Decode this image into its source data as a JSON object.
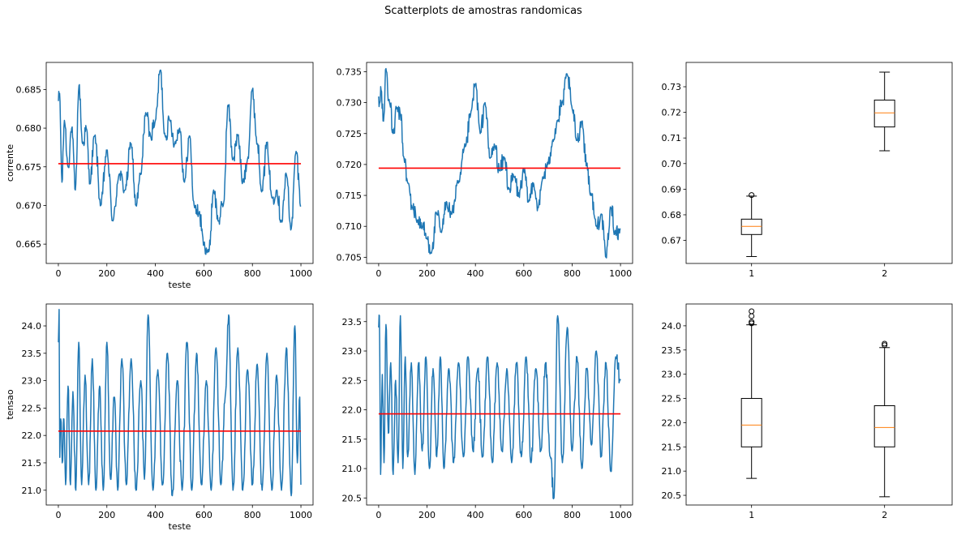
{
  "suptitle": "Scatterplots de amostras randomicas",
  "colors": {
    "series": "#1f77b4",
    "mean": "#ff0000",
    "median": "#ff7f0e",
    "box": "#000000",
    "background": "#ffffff"
  },
  "chart_data": [
    {
      "id": "corrente-1",
      "type": "line",
      "xlabel": "teste",
      "ylabel": "corrente",
      "xlim": [
        -50,
        1050
      ],
      "ylim": [
        0.6625,
        0.6885
      ],
      "xticks": [
        0,
        200,
        400,
        600,
        800,
        1000
      ],
      "yticks": [
        0.665,
        0.67,
        0.675,
        0.68,
        0.685
      ],
      "ytick_labels": [
        "0.665",
        "0.670",
        "0.675",
        "0.680",
        "0.685"
      ],
      "series_anchors": {
        "x": [
          0,
          5,
          15,
          25,
          40,
          55,
          70,
          85,
          100,
          115,
          130,
          150,
          175,
          200,
          225,
          250,
          275,
          300,
          320,
          340,
          360,
          380,
          400,
          420,
          440,
          460,
          480,
          500,
          520,
          540,
          560,
          580,
          600,
          620,
          640,
          660,
          680,
          700,
          720,
          740,
          760,
          780,
          800,
          820,
          840,
          860,
          880,
          900,
          920,
          940,
          960,
          980,
          1000
        ],
        "y": [
          0.6835,
          0.6845,
          0.673,
          0.681,
          0.675,
          0.68,
          0.672,
          0.6855,
          0.678,
          0.68,
          0.673,
          0.679,
          0.67,
          0.677,
          0.668,
          0.674,
          0.672,
          0.678,
          0.67,
          0.674,
          0.682,
          0.679,
          0.681,
          0.6875,
          0.679,
          0.681,
          0.678,
          0.68,
          0.673,
          0.679,
          0.67,
          0.669,
          0.665,
          0.664,
          0.672,
          0.668,
          0.67,
          0.683,
          0.676,
          0.679,
          0.673,
          0.676,
          0.685,
          0.678,
          0.672,
          0.678,
          0.671,
          0.672,
          0.668,
          0.674,
          0.667,
          0.677,
          0.67
        ]
      },
      "mean": 0.6754
    },
    {
      "id": "corrente-2",
      "type": "line",
      "xlabel": "",
      "ylabel": "",
      "xlim": [
        -50,
        1050
      ],
      "ylim": [
        0.704,
        0.7365
      ],
      "xticks": [
        0,
        200,
        400,
        600,
        800,
        1000
      ],
      "yticks": [
        0.705,
        0.71,
        0.715,
        0.72,
        0.725,
        0.73,
        0.735
      ],
      "ytick_labels": [
        "0.705",
        "0.710",
        "0.715",
        "0.720",
        "0.725",
        "0.730",
        "0.735"
      ],
      "series_anchors": {
        "x": [
          0,
          5,
          10,
          20,
          30,
          45,
          60,
          75,
          90,
          105,
          120,
          140,
          160,
          180,
          200,
          220,
          240,
          260,
          280,
          300,
          330,
          360,
          380,
          400,
          420,
          440,
          460,
          480,
          500,
          520,
          540,
          560,
          580,
          600,
          620,
          640,
          660,
          680,
          700,
          720,
          740,
          760,
          780,
          800,
          820,
          840,
          860,
          880,
          900,
          920,
          940,
          960,
          980,
          1000
        ],
        "y": [
          0.731,
          0.73,
          0.732,
          0.727,
          0.7355,
          0.73,
          0.725,
          0.729,
          0.728,
          0.721,
          0.717,
          0.713,
          0.711,
          0.71,
          0.708,
          0.706,
          0.712,
          0.709,
          0.714,
          0.712,
          0.717,
          0.723,
          0.728,
          0.733,
          0.725,
          0.73,
          0.721,
          0.723,
          0.719,
          0.721,
          0.716,
          0.718,
          0.715,
          0.719,
          0.714,
          0.717,
          0.713,
          0.718,
          0.72,
          0.724,
          0.727,
          0.73,
          0.7345,
          0.729,
          0.724,
          0.727,
          0.72,
          0.715,
          0.71,
          0.712,
          0.705,
          0.713,
          0.709,
          0.7095
        ]
      },
      "mean": 0.7194
    },
    {
      "id": "corrente-box",
      "type": "box",
      "categories": [
        "1",
        "2"
      ],
      "ylim": [
        0.661,
        0.7395
      ],
      "yticks": [
        0.67,
        0.68,
        0.69,
        0.7,
        0.71,
        0.72,
        0.73
      ],
      "ytick_labels": [
        "0.67",
        "0.68",
        "0.69",
        "0.70",
        "0.71",
        "0.72",
        "0.73"
      ],
      "boxes": [
        {
          "whisker_low": 0.6637,
          "q1": 0.6723,
          "median": 0.6755,
          "q3": 0.6783,
          "whisker_high": 0.6873,
          "outliers": [
            0.6877
          ]
        },
        {
          "whisker_low": 0.705,
          "q1": 0.7143,
          "median": 0.7198,
          "q3": 0.7248,
          "whisker_high": 0.7357,
          "outliers": []
        }
      ]
    },
    {
      "id": "tensao-1",
      "type": "line",
      "xlabel": "teste",
      "ylabel": "tensao",
      "xlim": [
        -50,
        1050
      ],
      "ylim": [
        20.73,
        24.4
      ],
      "xticks": [
        0,
        200,
        400,
        600,
        800,
        1000
      ],
      "yticks": [
        21.0,
        21.5,
        22.0,
        22.5,
        23.0,
        23.5,
        24.0
      ],
      "ytick_labels": [
        "21.0",
        "21.5",
        "22.0",
        "22.5",
        "23.0",
        "23.5",
        "24.0"
      ],
      "series_anchors": {
        "x": [
          0,
          3,
          6,
          10,
          16,
          23,
          30,
          40,
          50,
          60,
          72,
          84,
          96,
          110,
          125,
          140,
          155,
          170,
          185,
          200,
          215,
          230,
          245,
          262,
          280,
          300,
          320,
          340,
          355,
          370,
          390,
          410,
          430,
          450,
          470,
          490,
          510,
          530,
          550,
          570,
          590,
          610,
          630,
          650,
          670,
          690,
          702,
          720,
          740,
          760,
          780,
          800,
          820,
          840,
          860,
          880,
          900,
          920,
          940,
          960,
          975,
          985,
          995,
          1000
        ],
        "y": [
          23.7,
          24.3,
          21.6,
          22.3,
          21.5,
          22.3,
          21.1,
          22.9,
          21.1,
          22.8,
          21.0,
          23.7,
          21.1,
          23.1,
          21.1,
          23.4,
          21.0,
          22.9,
          21.0,
          23.7,
          21.2,
          22.7,
          21.0,
          23.4,
          21.1,
          23.4,
          21.0,
          23.0,
          21.2,
          24.2,
          21.0,
          23.2,
          21.1,
          23.5,
          20.9,
          23.0,
          21.0,
          23.7,
          21.0,
          23.5,
          21.1,
          23.0,
          21.0,
          23.6,
          21.1,
          22.8,
          24.2,
          21.0,
          23.6,
          21.0,
          23.2,
          21.1,
          23.3,
          21.0,
          23.5,
          21.0,
          23.1,
          21.0,
          23.6,
          20.9,
          24.0,
          21.5,
          22.7,
          21.1
        ]
      },
      "mean": 22.08
    },
    {
      "id": "tensao-2",
      "type": "line",
      "xlabel": "",
      "ylabel": "",
      "xlim": [
        -50,
        1050
      ],
      "ylim": [
        20.38,
        23.8
      ],
      "xticks": [
        0,
        200,
        400,
        600,
        800,
        1000
      ],
      "yticks": [
        20.5,
        21.0,
        21.5,
        22.0,
        22.5,
        23.0,
        23.5
      ],
      "ytick_labels": [
        "20.5",
        "21.0",
        "21.5",
        "22.0",
        "22.5",
        "23.0",
        "23.5"
      ],
      "series_anchors": {
        "x": [
          0,
          3,
          8,
          15,
          22,
          30,
          40,
          50,
          60,
          70,
          80,
          90,
          100,
          110,
          120,
          135,
          150,
          165,
          180,
          195,
          210,
          225,
          240,
          255,
          270,
          290,
          310,
          330,
          350,
          370,
          390,
          410,
          430,
          450,
          470,
          490,
          510,
          530,
          550,
          570,
          590,
          610,
          630,
          650,
          670,
          690,
          710,
          725,
          740,
          760,
          780,
          800,
          820,
          840,
          860,
          880,
          900,
          920,
          940,
          960,
          980,
          1000
        ],
        "y": [
          23.4,
          23.6,
          20.9,
          22.6,
          21.1,
          23.45,
          21.6,
          22.8,
          20.9,
          22.5,
          21.1,
          23.6,
          21.0,
          22.9,
          21.2,
          22.8,
          20.9,
          22.8,
          21.3,
          22.9,
          21.0,
          22.7,
          21.2,
          22.9,
          21.0,
          22.7,
          21.1,
          22.8,
          21.2,
          22.9,
          21.3,
          22.7,
          21.2,
          22.9,
          21.1,
          22.8,
          21.3,
          22.7,
          21.1,
          22.8,
          21.2,
          22.9,
          21.1,
          22.7,
          21.3,
          22.8,
          21.2,
          20.5,
          23.6,
          21.1,
          23.4,
          21.3,
          22.9,
          21.0,
          22.7,
          21.4,
          23.0,
          21.2,
          22.8,
          20.95,
          22.9,
          22.5
        ]
      },
      "mean": 21.93
    },
    {
      "id": "tensao-box",
      "type": "box",
      "categories": [
        "1",
        "2"
      ],
      "ylim": [
        20.3,
        24.45
      ],
      "yticks": [
        20.5,
        21.0,
        21.5,
        22.0,
        22.5,
        23.0,
        23.5,
        24.0
      ],
      "ytick_labels": [
        "20.5",
        "21.0",
        "21.5",
        "22.0",
        "22.5",
        "23.0",
        "23.5",
        "24.0"
      ],
      "boxes": [
        {
          "whisker_low": 20.85,
          "q1": 21.5,
          "median": 21.95,
          "q3": 22.5,
          "whisker_high": 24.02,
          "outliers": [
            24.05,
            24.08,
            24.2,
            24.3
          ]
        },
        {
          "whisker_low": 20.47,
          "q1": 21.5,
          "median": 21.9,
          "q3": 22.35,
          "whisker_high": 23.55,
          "outliers": [
            23.6,
            23.63
          ]
        }
      ]
    }
  ]
}
